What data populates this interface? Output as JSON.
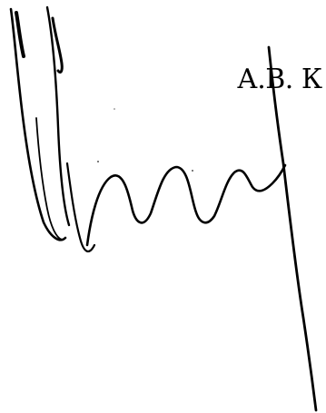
{
  "document": {
    "printed_name": "А.В. К",
    "signature": {
      "kind": "handwritten-signature",
      "ink_color": "#000000"
    }
  }
}
